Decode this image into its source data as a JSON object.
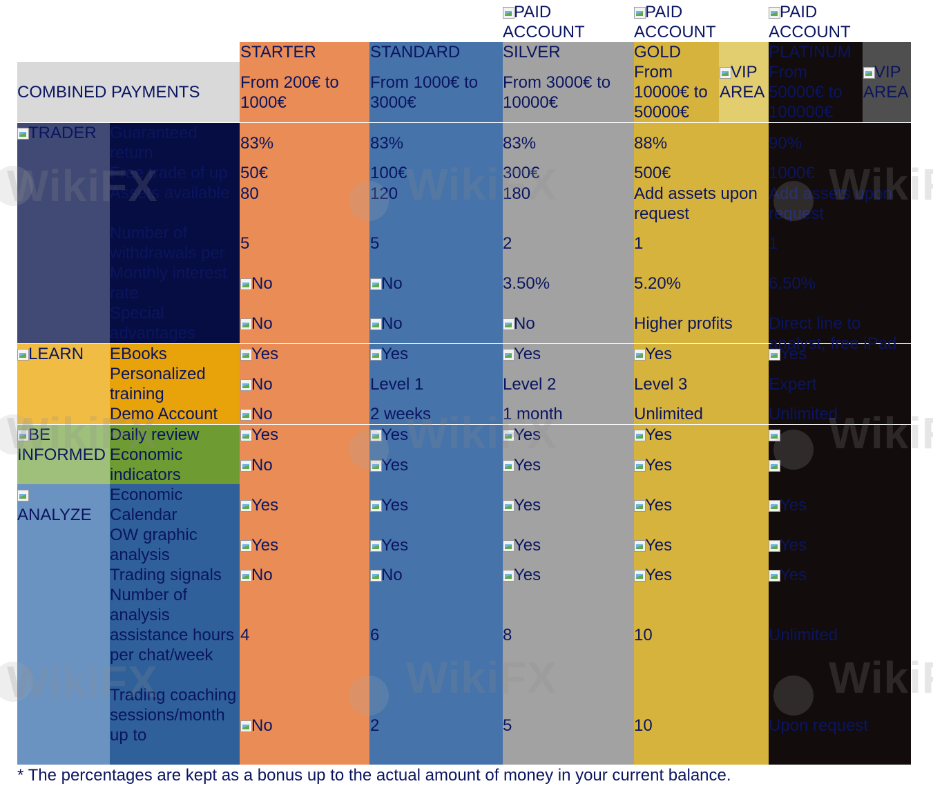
{
  "top_labels": {
    "paid_silver": "PAID ACCOUNT",
    "paid_gold": "PAID ACCOUNT",
    "paid_platinum": "PAID ACCOUNT"
  },
  "header": {
    "combined_payments": "COMBINED PAYMENTS",
    "plans": [
      {
        "name": "STARTER",
        "range": "From 200€ to 1000€"
      },
      {
        "name": "STANDARD",
        "range": "From 1000€ to 3000€"
      },
      {
        "name": "SILVER",
        "range": "From 3000€ to 10000€"
      },
      {
        "name": "GOLD",
        "range": "From 10000€ to 50000€",
        "vip": "VIP AREA"
      },
      {
        "name": "PLATINUM",
        "range": "From 50000€ to 100000€",
        "vip": "VIP AREA"
      }
    ]
  },
  "sections": {
    "trader": "TRADER",
    "learn": "LEARN",
    "be_informed": "BE INFORMED",
    "analyze": "ANALYZE"
  },
  "rows": {
    "trader": [
      {
        "label": "Guaranteed return",
        "values": [
          "83%",
          "83%",
          "83%",
          "88%",
          "90%"
        ]
      },
      {
        "label": "Free trade of up to",
        "values": [
          "50€",
          "100€",
          "300€",
          "500€",
          "1000€"
        ]
      },
      {
        "label": "Assets available",
        "values": [
          "80",
          "120",
          "180",
          "Add assets upon request",
          "Add assets upon request"
        ]
      },
      {
        "label": "Number of withdrawals per month",
        "values": [
          "5",
          "5",
          "2",
          "1",
          "1"
        ]
      },
      {
        "label": "Monthly interest rate",
        "values": [
          "No",
          "No",
          "3.50%",
          "5.20%",
          "6.50%"
        ]
      },
      {
        "label": "Special advantages",
        "values": [
          "No",
          "No",
          "No",
          "Higher profits",
          "Direct line to analyst, free iPad"
        ]
      }
    ],
    "learn": [
      {
        "label": "EBooks",
        "values": [
          "Yes",
          "Yes",
          "Yes",
          "Yes",
          "Yes"
        ]
      },
      {
        "label": "Personalized training",
        "values": [
          "No",
          "Level 1",
          "Level 2",
          "Level 3",
          "Expert"
        ]
      },
      {
        "label": "Demo Account",
        "values": [
          "No",
          "2 weeks",
          "1 month",
          "Unlimited",
          "Unlimited"
        ]
      }
    ],
    "be_informed": [
      {
        "label": "Daily review",
        "values": [
          "Yes",
          "Yes",
          "Yes",
          "Yes",
          ""
        ]
      },
      {
        "label": "Economic indicators",
        "values": [
          "No",
          "Yes",
          "Yes",
          "Yes",
          ""
        ]
      }
    ],
    "analyze": [
      {
        "label": "Economic Calendar",
        "values": [
          "Yes",
          "Yes",
          "Yes",
          "Yes",
          "Yes"
        ]
      },
      {
        "label": "OW graphic analysis",
        "values": [
          "Yes",
          "Yes",
          "Yes",
          "Yes",
          "Yes"
        ]
      },
      {
        "label": "Trading signals",
        "values": [
          "No",
          "No",
          "Yes",
          "Yes",
          "Yes"
        ]
      },
      {
        "label": "Number of analysis assistance hours per chat/week",
        "values": [
          "4",
          "6",
          "8",
          "10",
          "Unlimited"
        ]
      },
      {
        "label": "Trading coaching sessions/month up to",
        "values": [
          "No",
          "2",
          "5",
          "10",
          "Upon request"
        ]
      }
    ]
  },
  "footnote": "* The percentages are kept as a bonus up to the actual amount of money in your current balance.",
  "watermark": "WikiFX",
  "colors": {
    "starter": "#e98c55",
    "standard": "#4673aa",
    "silver": "#a2a2a2",
    "gold": "#d6b33d",
    "gold_vip": "#e2cd6f",
    "platinum": "#120c0c",
    "platinum_vip": "#4f4f4f",
    "header_grey": "#d9d9d9",
    "text": "#0b1560"
  }
}
